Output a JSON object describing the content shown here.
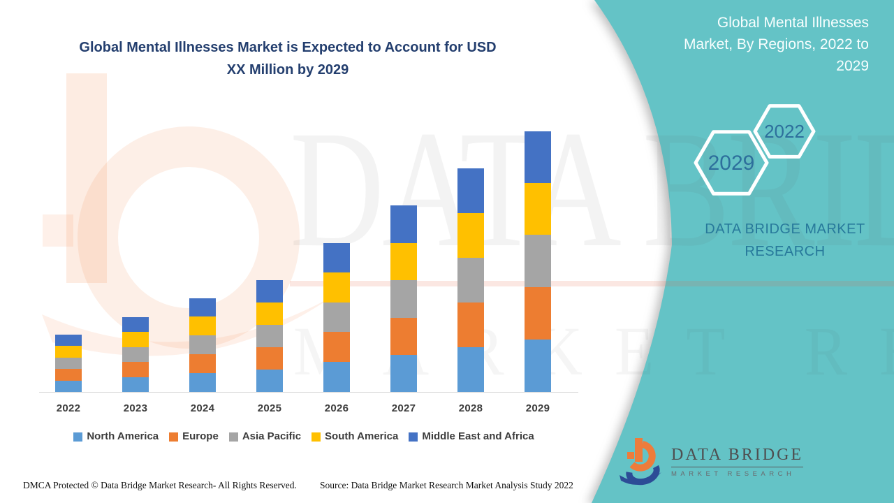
{
  "title": {
    "line1": "Global Mental Illnesses Market is Expected to Account for USD",
    "line2": "XX Million by 2029"
  },
  "right_panel": {
    "heading_lines": [
      "Global Mental Illnesses",
      "Market, By Regions, 2022 to",
      "2029"
    ],
    "hexagons": [
      {
        "label": "2029"
      },
      {
        "label": "2022"
      }
    ],
    "brand_line1": "DATA BRIDGE MARKET",
    "brand_line2": "RESEARCH"
  },
  "chart_data": {
    "type": "stacked-bar",
    "title": "Global Mental Illnesses Market, By Regions, 2022 to 2029",
    "note": "Actual values undisclosed on chart (USD XX Million); series values are relative segment heights in px read from the figure.",
    "categories": [
      "2022",
      "2023",
      "2024",
      "2025",
      "2026",
      "2027",
      "2028",
      "2029"
    ],
    "stack_order_bottom_to_top": [
      "North America",
      "Europe",
      "Asia Pacific",
      "South America",
      "Middle East and Africa"
    ],
    "series": [
      {
        "name": "North America",
        "color": "#5B9BD5",
        "values": [
          16,
          21,
          27,
          32,
          43,
          53,
          64,
          75
        ]
      },
      {
        "name": "Europe",
        "color": "#ED7D31",
        "values": [
          17,
          22,
          27,
          32,
          43,
          53,
          64,
          75
        ]
      },
      {
        "name": "Asia Pacific",
        "color": "#A5A5A5",
        "values": [
          16,
          21,
          27,
          32,
          42,
          54,
          64,
          75
        ]
      },
      {
        "name": "South America",
        "color": "#FFC000",
        "values": [
          17,
          22,
          27,
          32,
          43,
          53,
          64,
          74
        ]
      },
      {
        "name": "Middle East and Africa",
        "color": "#4472C4",
        "values": [
          16,
          21,
          26,
          32,
          42,
          54,
          64,
          74
        ]
      }
    ],
    "xlabel": "",
    "ylabel": "",
    "grid": false,
    "legend_position": "bottom"
  },
  "footer": {
    "dmca": "DMCA Protected © Data Bridge Market Research- All Rights Reserved.",
    "source": "Source: Data Bridge Market Research Market Analysis Study 2022"
  },
  "logo": {
    "name": "DATA BRIDGE",
    "tagline": "MARKET RESEARCH"
  },
  "watermark": {
    "text1": "DATA BRIDGE",
    "text2": "MARKET RESEARCH"
  },
  "colors": {
    "teal": "#64C3C6",
    "title_text": "#233E6E",
    "hex_number": "#2D6F9C",
    "brand_text": "#27799B",
    "axis_label": "#3C3C3C"
  }
}
